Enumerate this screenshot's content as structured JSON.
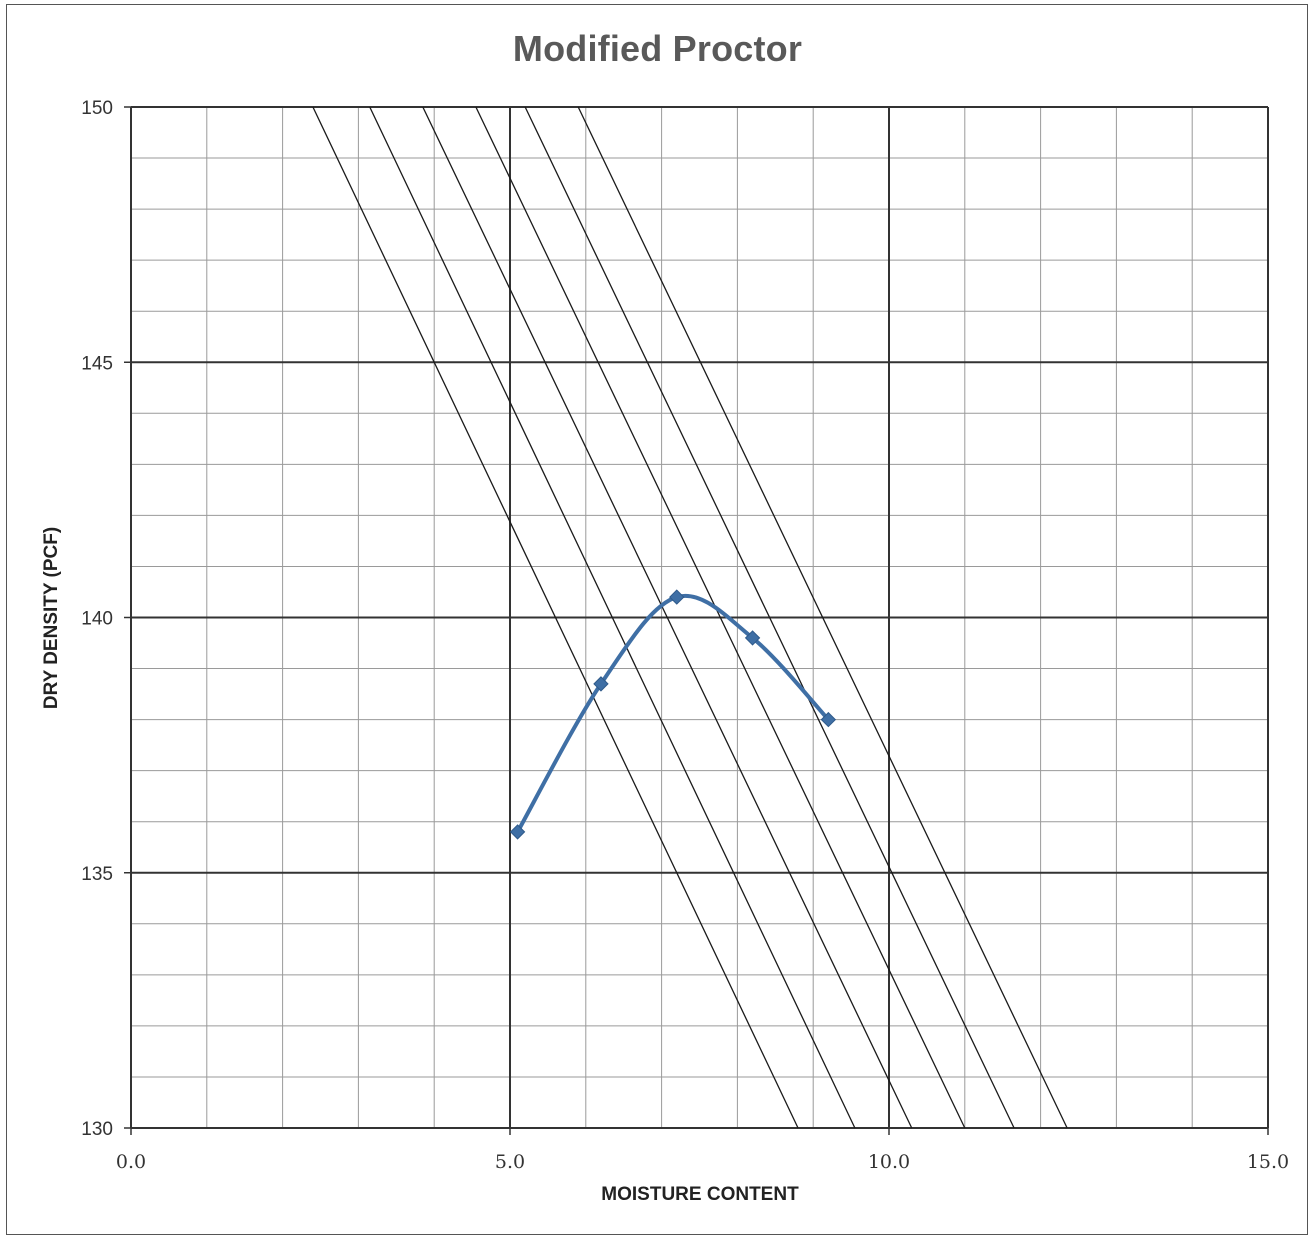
{
  "chart_data": {
    "type": "scatter",
    "title": "Modified Proctor",
    "xlabel": "MOISTURE CONTENT",
    "ylabel": "DRY DENSITY (PCF)",
    "xlim": [
      0,
      15
    ],
    "ylim": [
      130,
      150
    ],
    "x_ticks": [
      "0.0",
      "5.0",
      "10.0",
      "15.0"
    ],
    "y_ticks": [
      "130",
      "135",
      "140",
      "145",
      "150"
    ],
    "grid": true,
    "series": [
      {
        "values": [
          {
            "x": 5.1,
            "y": 135.8
          },
          {
            "x": 6.2,
            "y": 138.7
          },
          {
            "x": 7.2,
            "y": 140.4
          },
          {
            "x": 8.2,
            "y": 139.6
          },
          {
            "x": 9.2,
            "y": 138.0
          }
        ]
      }
    ],
    "reference_lines": [
      {
        "points": [
          {
            "x": 2.4,
            "y": 150
          },
          {
            "x": 8.8,
            "y": 130
          }
        ]
      },
      {
        "points": [
          {
            "x": 3.15,
            "y": 150
          },
          {
            "x": 9.55,
            "y": 130
          }
        ]
      },
      {
        "points": [
          {
            "x": 3.85,
            "y": 150
          },
          {
            "x": 10.3,
            "y": 130
          }
        ]
      },
      {
        "points": [
          {
            "x": 4.55,
            "y": 150
          },
          {
            "x": 11.0,
            "y": 130
          }
        ]
      },
      {
        "points": [
          {
            "x": 5.2,
            "y": 150
          },
          {
            "x": 11.65,
            "y": 130
          }
        ]
      },
      {
        "points": [
          {
            "x": 5.9,
            "y": 150
          },
          {
            "x": 12.35,
            "y": 130
          }
        ]
      }
    ],
    "colors": {
      "series": "#3f6fa5",
      "reference": "#1a1a1a",
      "major_grid": "#333333",
      "minor_grid": "#9a9a9a"
    }
  }
}
